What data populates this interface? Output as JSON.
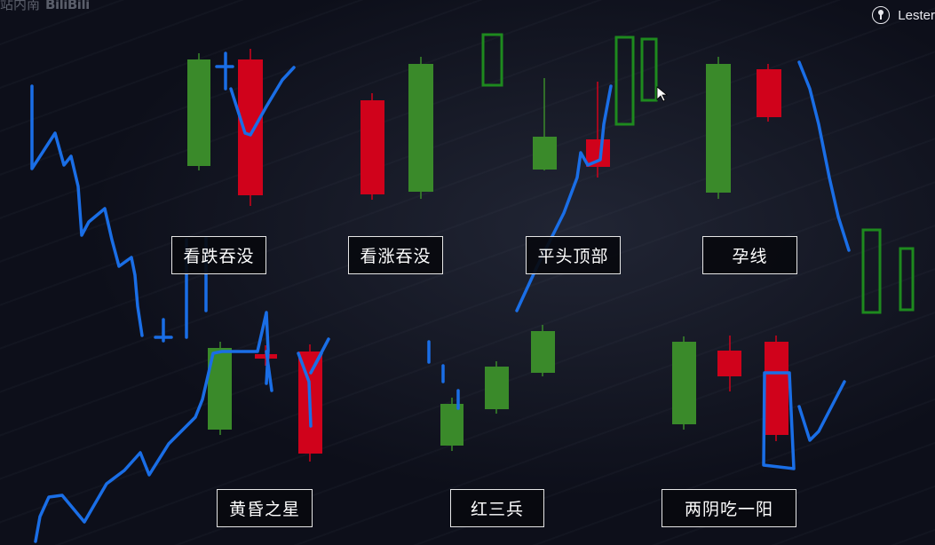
{
  "header": {
    "watermark_text": "站内南",
    "watermark_logo": "BiliBili",
    "username": "Lester"
  },
  "pattern_labels": {
    "bearish_engulfing": "看跌吞没",
    "bullish_engulfing": "看涨吞没",
    "flat_top": "平头顶部",
    "harami": "孕线",
    "evening_star": "黄昏之星",
    "three_soldiers": "红三兵",
    "two_yin_one_yang": "两阴吃一阳"
  },
  "colors": {
    "background": "#0d0f1a",
    "bullish_candle": "#3a8a2a",
    "bearish_candle": "#d0021b",
    "pen_blue": "#1a6ee6",
    "pen_green": "#1e8a1e",
    "label_border": "#e6e6e6"
  }
}
